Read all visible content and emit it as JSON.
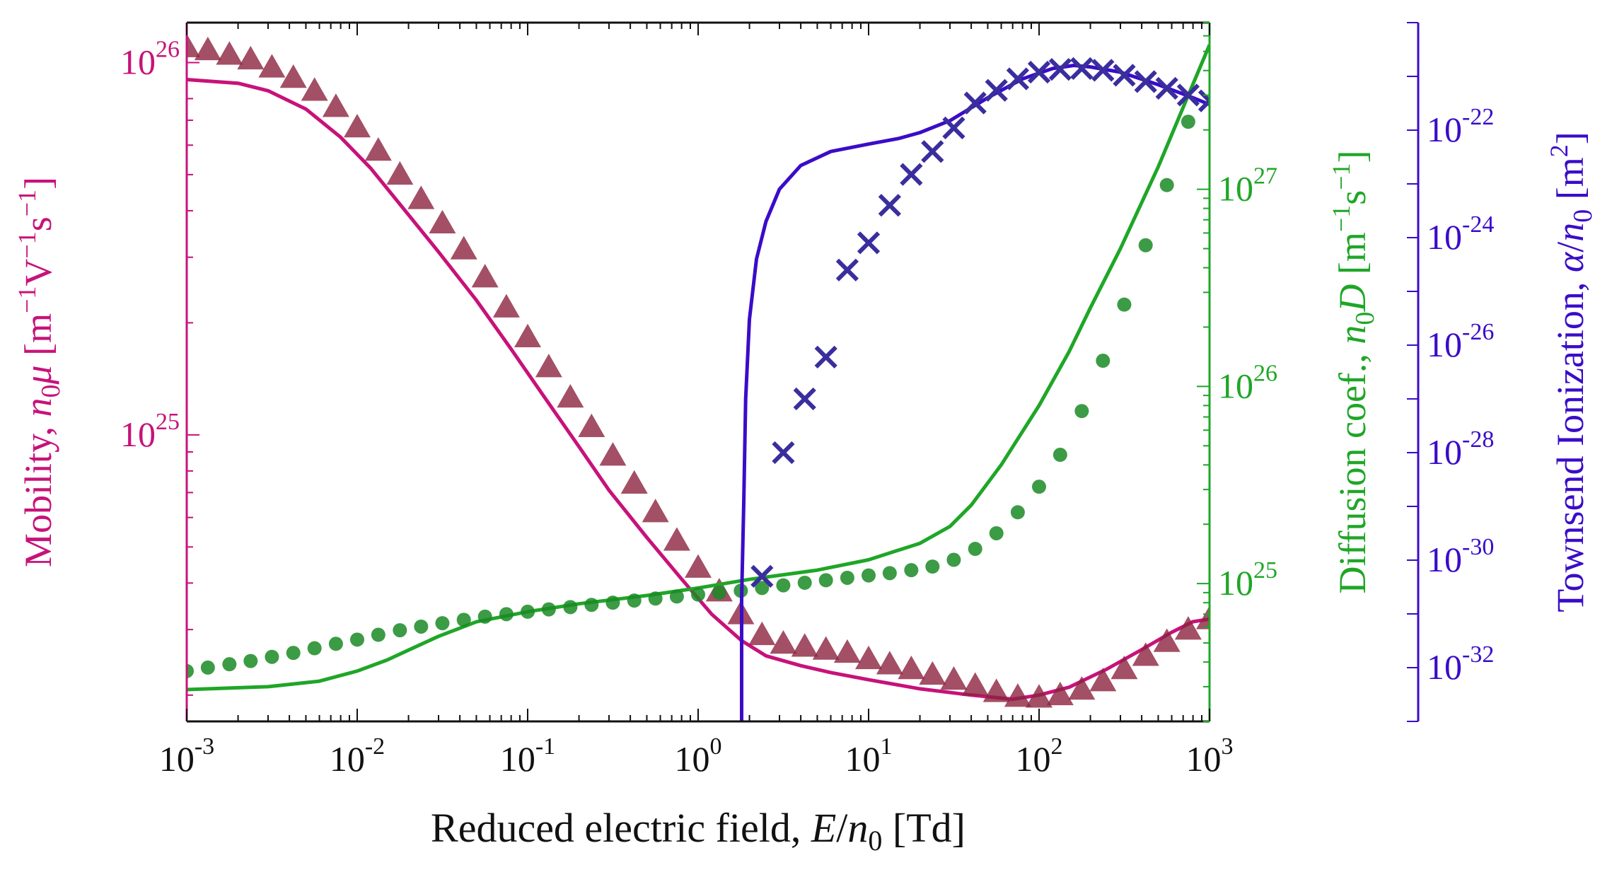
{
  "chart_data": {
    "type": "line",
    "x_scale": "log",
    "xlim": [
      0.001,
      1000
    ],
    "xlabel": {
      "prefix": "Reduced electric field, ",
      "var": "E",
      "slash": "/",
      "n": "n",
      "sub": "0",
      "unit": " [Td]"
    },
    "x_ticks": [
      {
        "base": "10",
        "exp": "-3",
        "value": 0.001
      },
      {
        "base": "10",
        "exp": "-2",
        "value": 0.01
      },
      {
        "base": "10",
        "exp": "-1",
        "value": 0.1
      },
      {
        "base": "10",
        "exp": "0",
        "value": 1
      },
      {
        "base": "10",
        "exp": "1",
        "value": 10
      },
      {
        "base": "10",
        "exp": "2",
        "value": 100
      },
      {
        "base": "10",
        "exp": "3",
        "value": 1000
      }
    ],
    "axes": {
      "mobility": {
        "side": "left",
        "color": "#C7127A",
        "scale": "log",
        "ylim": [
          1.7e+24,
          1.28e+26
        ],
        "label": {
          "prefix": "Mobility, ",
          "n": "n",
          "sub": "0",
          "var": "μ",
          "unit": " [m",
          "e1": "−1",
          "mid": "V",
          "e2": "−1",
          "end": "s",
          "e3": "−1",
          "close": "]"
        },
        "ticks": [
          {
            "base": "10",
            "exp": "25",
            "value": 1e+25
          },
          {
            "base": "10",
            "exp": "26",
            "value": 1e+26
          }
        ]
      },
      "diffusion": {
        "side": "right",
        "color": "#1FA627",
        "scale": "log",
        "ylim": [
          2e+24,
          7e+27
        ],
        "label": {
          "prefix": "Diffusion coef., ",
          "n": "n",
          "sub": "0",
          "var": "D",
          "unit": " [m",
          "e1": "−1",
          "mid": "s",
          "e2": "−1",
          "close": "]"
        },
        "ticks": [
          {
            "base": "10",
            "exp": "25",
            "value": 1e+25
          },
          {
            "base": "10",
            "exp": "26",
            "value": 1e+26
          },
          {
            "base": "10",
            "exp": "27",
            "value": 1e+27
          }
        ]
      },
      "townsend": {
        "side": "right-outer",
        "color": "#3A0CC8",
        "scale": "log",
        "ylim": [
          1e-33,
          1e-20
        ],
        "label": {
          "prefix": "Townsend Ionization, ",
          "var": "α",
          "slash": "/",
          "n": "n",
          "sub": "0",
          "unit": " [m",
          "e1": "2",
          "close": "]"
        },
        "ticks": [
          {
            "base": "10",
            "exp": "-22",
            "value": 1e-22
          },
          {
            "base": "10",
            "exp": "-24",
            "value": 1e-24
          },
          {
            "base": "10",
            "exp": "-26",
            "value": 1e-26
          },
          {
            "base": "10",
            "exp": "-28",
            "value": 1e-28
          },
          {
            "base": "10",
            "exp": "-30",
            "value": 1e-30
          },
          {
            "base": "10",
            "exp": "-32",
            "value": 1e-32
          }
        ]
      }
    },
    "series": [
      {
        "axis": "mobility",
        "kind": "line",
        "color": "#C7127A",
        "x": [
          0.001,
          0.002,
          0.003,
          0.005,
          0.008,
          0.012,
          0.02,
          0.03,
          0.05,
          0.08,
          0.12,
          0.2,
          0.3,
          0.5,
          0.8,
          1.2,
          1.8,
          2.5,
          4,
          6,
          10,
          20,
          40,
          70,
          100,
          150,
          250,
          400,
          600,
          800,
          1000
        ],
        "y": [
          9e+25,
          8.8e+25,
          8.4e+25,
          7.5e+25,
          6.3e+25,
          5.2e+25,
          3.9e+25,
          3.1e+25,
          2.3e+25,
          1.7e+25,
          1.3e+25,
          9.3e+24,
          7.1e+24,
          5.3e+24,
          4.1e+24,
          3.3e+24,
          2.8e+24,
          2.55e+24,
          2.4e+24,
          2.3e+24,
          2.2e+24,
          2.08e+24,
          2e+24,
          1.95e+24,
          2e+24,
          2.1e+24,
          2.35e+24,
          2.65e+24,
          2.95e+24,
          3.15e+24,
          3.2e+24
        ]
      },
      {
        "axis": "mobility",
        "kind": "markers",
        "marker": "triangle",
        "color": "#8C2340",
        "x": [
          0.001,
          0.00133,
          0.00178,
          0.00237,
          0.00316,
          0.00422,
          0.00562,
          0.0075,
          0.01,
          0.0133,
          0.0178,
          0.0237,
          0.0316,
          0.0422,
          0.0562,
          0.075,
          0.1,
          0.133,
          0.178,
          0.237,
          0.316,
          0.422,
          0.562,
          0.75,
          1.0,
          1.33,
          1.78,
          2.37,
          3.16,
          4.22,
          5.62,
          7.5,
          10,
          13.3,
          17.8,
          23.7,
          31.6,
          42.2,
          56.2,
          75,
          100,
          133,
          178,
          237,
          316,
          422,
          562,
          750,
          1000
        ],
        "y": [
          1.1e+26,
          1.08e+26,
          1.05e+26,
          1.02e+26,
          9.7e+25,
          9.1e+25,
          8.4e+25,
          7.6e+25,
          6.7e+25,
          5.8e+25,
          5e+25,
          4.3e+25,
          3.7e+25,
          3.15e+25,
          2.65e+25,
          2.2e+25,
          1.83e+25,
          1.52e+25,
          1.26e+25,
          1.05e+25,
          8.8e+24,
          7.4e+24,
          6.2e+24,
          5.2e+24,
          4.4e+24,
          3.8e+24,
          3.3e+24,
          2.9e+24,
          2.75e+24,
          2.7e+24,
          2.65e+24,
          2.6e+24,
          2.5e+24,
          2.42e+24,
          2.35e+24,
          2.27e+24,
          2.2e+24,
          2.12e+24,
          2.04e+24,
          1.98e+24,
          1.97e+24,
          2e+24,
          2.07e+24,
          2.18e+24,
          2.35e+24,
          2.55e+24,
          2.78e+24,
          3e+24,
          3.2e+24
        ]
      },
      {
        "axis": "diffusion",
        "kind": "line",
        "color": "#1FA627",
        "x": [
          0.001,
          0.003,
          0.006,
          0.01,
          0.015,
          0.02,
          0.03,
          0.05,
          0.1,
          0.2,
          0.5,
          1,
          2,
          5,
          10,
          20,
          30,
          40,
          60,
          100,
          150,
          200,
          300,
          500,
          700,
          1000
        ],
        "y": [
          2.9e+24,
          3e+24,
          3.2e+24,
          3.6e+24,
          4.1e+24,
          4.6e+24,
          5.4e+24,
          6.4e+24,
          7.2e+24,
          7.9e+24,
          8.7e+24,
          9.5e+24,
          1.05e+25,
          1.17e+25,
          1.32e+25,
          1.6e+25,
          1.95e+25,
          2.5e+25,
          4e+25,
          8e+25,
          1.5e+26,
          2.5e+26,
          5e+26,
          1.3e+27,
          2.6e+27,
          5.4e+27
        ]
      },
      {
        "axis": "diffusion",
        "kind": "markers",
        "marker": "circle",
        "color": "#1A8A24",
        "x": [
          0.001,
          0.00133,
          0.00178,
          0.00237,
          0.00316,
          0.00422,
          0.00562,
          0.0075,
          0.01,
          0.0133,
          0.0178,
          0.0237,
          0.0316,
          0.0422,
          0.0562,
          0.075,
          0.1,
          0.133,
          0.178,
          0.237,
          0.316,
          0.422,
          0.562,
          0.75,
          1.0,
          1.33,
          1.78,
          2.37,
          3.16,
          4.22,
          5.62,
          7.5,
          10,
          13.3,
          17.8,
          23.7,
          31.6,
          42.2,
          56.2,
          75,
          100,
          133,
          178,
          237,
          316,
          422,
          562,
          750
        ],
        "y": [
          3.6e+24,
          3.75e+24,
          3.9e+24,
          4.05e+24,
          4.25e+24,
          4.45e+24,
          4.7e+24,
          4.95e+24,
          5.2e+24,
          5.5e+24,
          5.8e+24,
          6.05e+24,
          6.3e+24,
          6.55e+24,
          6.8e+24,
          7e+24,
          7.2e+24,
          7.4e+24,
          7.6e+24,
          7.8e+24,
          8e+24,
          8.2e+24,
          8.4e+24,
          8.6e+24,
          8.8e+24,
          9e+24,
          9.2e+24,
          9.5e+24,
          9.8e+24,
          1.01e+25,
          1.04e+25,
          1.07e+25,
          1.1e+25,
          1.13e+25,
          1.17e+25,
          1.22e+25,
          1.32e+25,
          1.5e+25,
          1.8e+25,
          2.3e+25,
          3.1e+25,
          4.5e+25,
          7.5e+25,
          1.35e+26,
          2.6e+26,
          5.2e+26,
          1.05e+27,
          2.2e+27
        ]
      },
      {
        "axis": "townsend",
        "kind": "line",
        "color": "#3A0CC8",
        "x": [
          1.8,
          1.8,
          1.82,
          1.85,
          1.9,
          2.0,
          2.2,
          2.5,
          3.0,
          4.0,
          6.0,
          10,
          15,
          20,
          30,
          50,
          80,
          120,
          160,
          200,
          300,
          500,
          800,
          1000
        ],
        "y": [
          1e-33,
          2e-31,
          1e-30,
          1e-29,
          1e-27,
          3e-26,
          4e-25,
          2e-24,
          8e-24,
          2.2e-23,
          4e-23,
          5.5e-23,
          7e-23,
          9e-23,
          1.5e-22,
          4e-22,
          9e-22,
          1.4e-21,
          1.6e-21,
          1.5e-21,
          1.2e-21,
          7e-22,
          4e-22,
          3e-22
        ]
      },
      {
        "axis": "townsend",
        "kind": "markers",
        "marker": "x",
        "color": "#3A2E9E",
        "x": [
          2.37,
          3.16,
          4.22,
          5.62,
          7.5,
          10,
          13.3,
          17.8,
          23.7,
          31.6,
          42.2,
          56.2,
          75,
          100,
          133,
          178,
          237,
          316,
          422,
          562,
          750,
          1000
        ],
        "y": [
          5e-31,
          1e-28,
          1e-27,
          6e-27,
          2.5e-25,
          8e-25,
          4e-24,
          1.5e-23,
          4e-23,
          1.1e-22,
          3.2e-22,
          5.5e-22,
          9e-22,
          1.2e-21,
          1.35e-21,
          1.4e-21,
          1.3e-21,
          1.05e-21,
          8e-22,
          6e-22,
          4.5e-22,
          3.5e-22
        ]
      }
    ]
  }
}
